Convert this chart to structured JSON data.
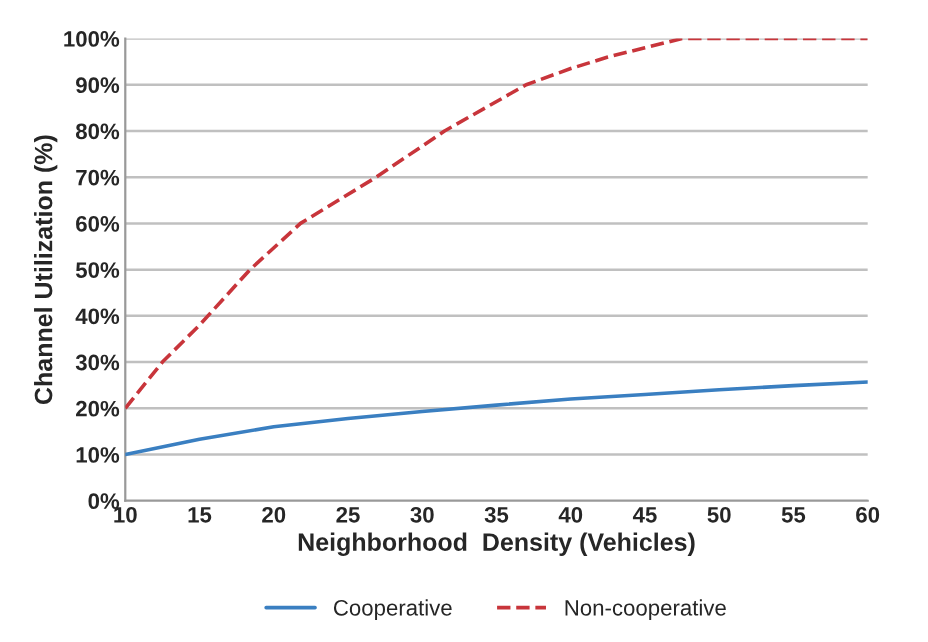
{
  "chart_data": {
    "type": "line",
    "xlabel": "Neighborhood  Density (Vehicles)",
    "ylabel": "Channel Utilization (%)",
    "xlim": [
      10,
      60
    ],
    "xticks": [
      10,
      15,
      20,
      25,
      30,
      35,
      40,
      45,
      50,
      55,
      60
    ],
    "ylim": [
      0,
      100
    ],
    "yticks": [
      {
        "value": 0,
        "label": "0%"
      },
      {
        "value": 10,
        "label": "10%"
      },
      {
        "value": 20,
        "label": "20%"
      },
      {
        "value": 30,
        "label": "30%"
      },
      {
        "value": 40,
        "label": "40%"
      },
      {
        "value": 50,
        "label": "50%"
      },
      {
        "value": 60,
        "label": "60%"
      },
      {
        "value": 70,
        "label": "70%"
      },
      {
        "value": 80,
        "label": "80%"
      },
      {
        "value": 90,
        "label": "90%"
      },
      {
        "value": 100,
        "label": "100%"
      }
    ],
    "grid": "y",
    "legend": "bottom",
    "marker": "none",
    "series": [
      {
        "name": "Cooperative",
        "color": "#3a7fc1",
        "line_style": "solid",
        "x": [
          10,
          15,
          20,
          25,
          30,
          35,
          40,
          45,
          50,
          55,
          60
        ],
        "values": [
          10,
          13.3,
          16,
          17.8,
          19.3,
          20.7,
          22,
          23,
          24,
          24.9,
          25.7
        ]
      },
      {
        "name": "Non-cooperative",
        "color": "#c8353b",
        "line_style": "dashed",
        "x": [
          10,
          12.5,
          15,
          18.4,
          21.8,
          26.9,
          31.5,
          37,
          40,
          42.5,
          45,
          47.5,
          60
        ],
        "values": [
          20,
          30,
          38,
          50,
          60,
          70,
          80,
          90,
          93.5,
          96,
          98,
          100,
          100
        ]
      }
    ]
  }
}
